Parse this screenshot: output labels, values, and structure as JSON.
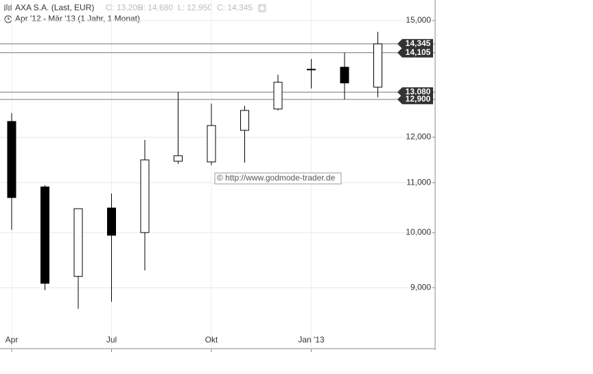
{
  "chart_data": {
    "type": "candlestick",
    "title": "AXA S.A. (Last, EUR)",
    "ohlc_labels": [
      "O: 13,205",
      "H: 14,680",
      "L: 12,950",
      "C: 14,345"
    ],
    "subtitle": "Apr '12 - Mär '13 (1 Jahr, 1 Monat)",
    "watermark": "© http://www.godmode-trader.de",
    "categories": [
      "Apr",
      null,
      null,
      "Jul",
      null,
      null,
      "Okt",
      null,
      null,
      "Jan '13",
      null,
      null
    ],
    "series": [
      {
        "name": "open",
        "values": [
          12367,
          10913,
          9196,
          10481,
          10000,
          11461,
          11446,
          12159,
          12665,
          13666,
          13719,
          13205
        ]
      },
      {
        "name": "high",
        "values": [
          12566,
          10947,
          10467,
          10776,
          11938,
          13086,
          12798,
          12743,
          13523,
          13937,
          14103,
          14680
        ]
      },
      {
        "name": "low",
        "values": [
          10052,
          8955,
          8643,
          8760,
          9302,
          11404,
          11374,
          11431,
          12630,
          13172,
          12900,
          12950
        ]
      },
      {
        "name": "close",
        "values": [
          10692,
          9075,
          10467,
          9948,
          11491,
          11583,
          12271,
          12630,
          13329,
          13648,
          13312,
          14345
        ]
      }
    ],
    "up_color": "#ffffff",
    "down_color": "#000000",
    "log_scale": true,
    "ylim": [
      8010,
      15600
    ],
    "yticks": [
      {
        "value": 9000,
        "label": "9,000"
      },
      {
        "value": 10000,
        "label": "10,000"
      },
      {
        "value": 11000,
        "label": "11,000"
      },
      {
        "value": 12000,
        "label": "12,000"
      },
      {
        "value": 15000,
        "label": "15,000"
      }
    ],
    "grid": true,
    "price_lines": [
      {
        "value": 14345,
        "label": "14,345"
      },
      {
        "value": 14105,
        "label": "14,105"
      },
      {
        "value": 13080,
        "label": "13,080"
      },
      {
        "value": 12900,
        "label": "12,900"
      }
    ]
  }
}
